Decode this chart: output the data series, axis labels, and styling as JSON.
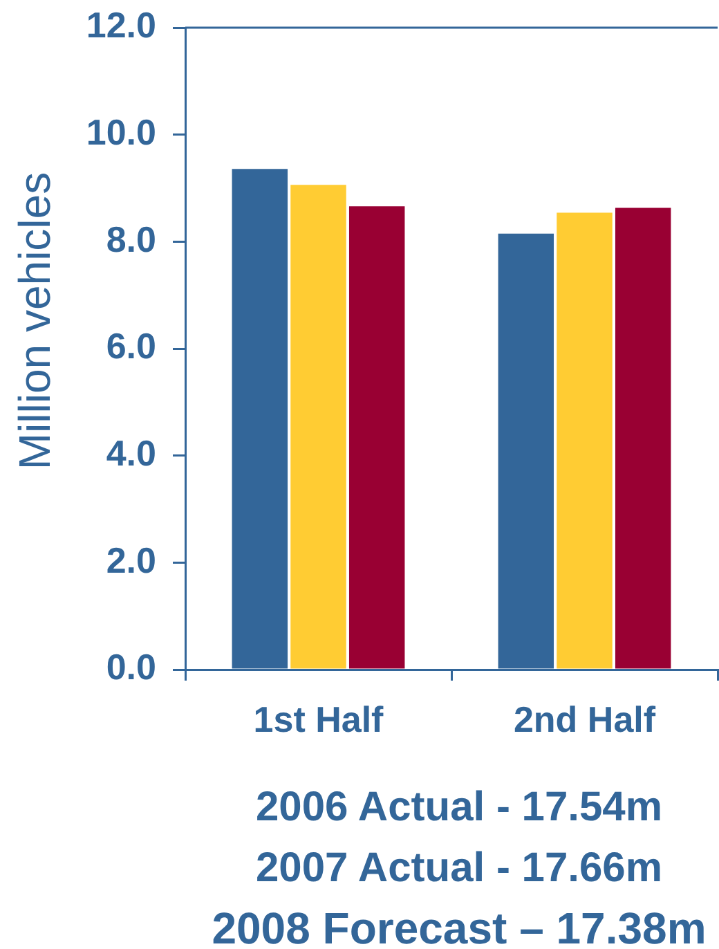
{
  "chart_data": {
    "type": "bar",
    "ylabel": "Million vehicles",
    "categories": [
      "1st Half",
      "2nd Half"
    ],
    "series": [
      {
        "color": "#336699",
        "values": [
          9.36,
          8.15
        ]
      },
      {
        "color": "#ffcc33",
        "values": [
          9.06,
          8.54
        ]
      },
      {
        "color": "#990033",
        "values": [
          8.66,
          8.63
        ]
      }
    ],
    "ylim": [
      0,
      12
    ],
    "yticks": [
      {
        "value": 0,
        "label": "0.0"
      },
      {
        "value": 2,
        "label": "2.0"
      },
      {
        "value": 4,
        "label": "4.0"
      },
      {
        "value": 6,
        "label": "6.0"
      },
      {
        "value": 8,
        "label": "8.0"
      },
      {
        "value": 10,
        "label": "10.0"
      },
      {
        "value": 12,
        "label": "12.0"
      }
    ],
    "annotations": [
      "2006 Actual - 17.54m",
      "2007 Actual - 17.66m",
      "2008 Forecast – 17.38m"
    ]
  }
}
